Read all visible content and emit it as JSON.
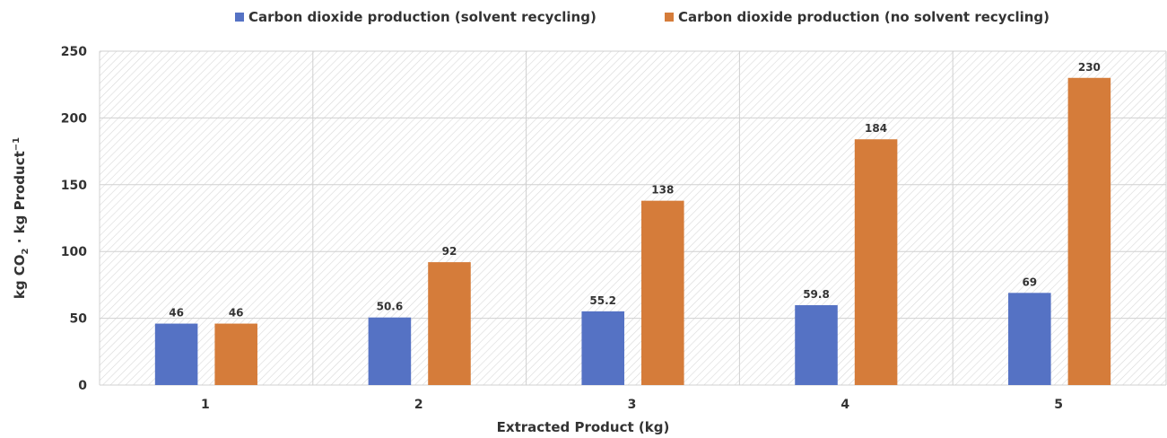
{
  "chart_data": {
    "type": "bar",
    "categories": [
      "1",
      "2",
      "3",
      "4",
      "5"
    ],
    "series": [
      {
        "name": "Carbon dioxide production (solvent recycling)",
        "color": "#5572c4",
        "values": [
          46,
          50.6,
          55.2,
          59.8,
          69
        ]
      },
      {
        "name": "Carbon dioxide  production (no solvent recycling)",
        "color": "#d57c3a",
        "values": [
          46,
          92,
          138,
          184,
          230
        ]
      }
    ],
    "data_labels": [
      [
        "46",
        "50.6",
        "55.2",
        "59.8",
        "69"
      ],
      [
        "46",
        "92",
        "138",
        "184",
        "230"
      ]
    ],
    "xlabel": "Extracted Product (kg)",
    "ylabel": {
      "prefix": "kg CO",
      "subscript": "2",
      "middle": " · kg Product",
      "superscript": "−1"
    },
    "ylim": [
      0,
      250
    ],
    "yticks": [
      "0",
      "50",
      "100",
      "150",
      "200",
      "250"
    ],
    "grid": true,
    "legend_position": "top-center",
    "background_pattern": "diagonal-hatch"
  }
}
